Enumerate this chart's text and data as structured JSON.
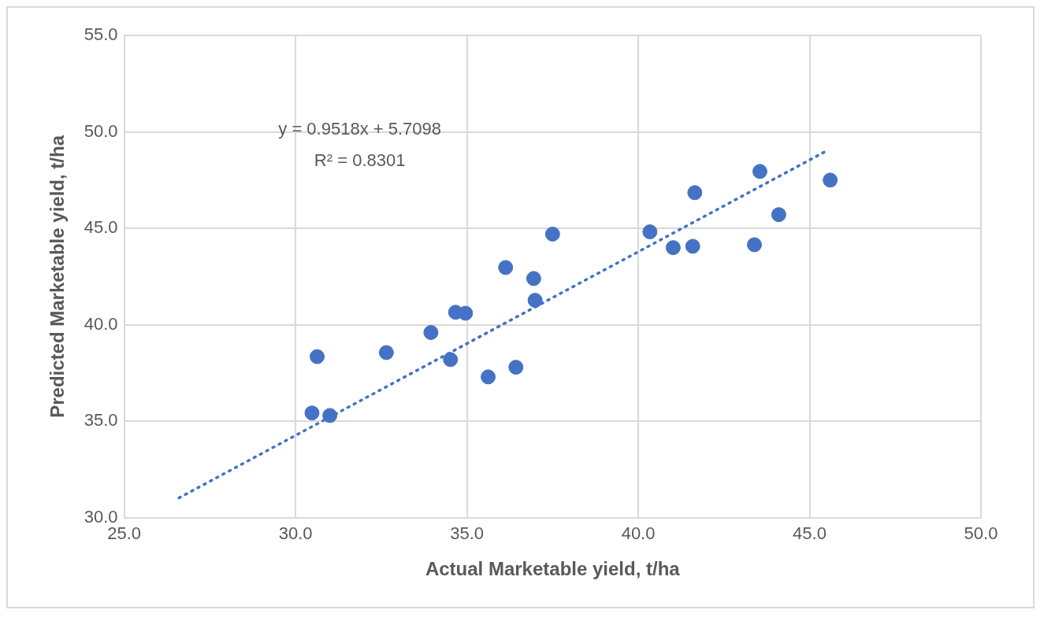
{
  "chart_data": {
    "type": "scatter",
    "xlabel": "Actual Marketable yield, t/ha",
    "ylabel": "Predicted Marketable yield, t/ha",
    "xlim": [
      25,
      50
    ],
    "ylim": [
      30,
      55
    ],
    "xticks": [
      {
        "value": 25,
        "label": "25.0"
      },
      {
        "value": 30,
        "label": "30.0"
      },
      {
        "value": 35,
        "label": "35.0"
      },
      {
        "value": 40,
        "label": "40.0"
      },
      {
        "value": 45,
        "label": "45.0"
      },
      {
        "value": 50,
        "label": "50.0"
      }
    ],
    "yticks": [
      {
        "value": 30,
        "label": "30.0"
      },
      {
        "value": 35,
        "label": "35.0"
      },
      {
        "value": 40,
        "label": "40.0"
      },
      {
        "value": 45,
        "label": "45.0"
      },
      {
        "value": 50,
        "label": "50.0"
      },
      {
        "value": 55,
        "label": "55.0"
      }
    ],
    "grid": true,
    "legend": false,
    "marker": "circle",
    "annotations": [
      "y = 0.9518x + 5.7098",
      "R² = 0.8301"
    ],
    "series": [
      {
        "type": "scatter",
        "color": "#4472c4",
        "x": [
          30.48,
          31.0,
          30.63,
          32.65,
          33.95,
          34.52,
          35.62,
          36.43,
          34.67,
          34.96,
          36.13,
          36.95,
          36.99,
          37.5,
          40.34,
          41.02,
          41.59,
          41.65,
          43.39,
          43.55,
          44.1,
          45.6
        ],
        "values": [
          35.43,
          35.3,
          38.35,
          38.56,
          39.6,
          38.2,
          37.3,
          37.8,
          40.65,
          40.6,
          42.97,
          42.4,
          41.27,
          44.7,
          44.82,
          44.0,
          44.07,
          46.85,
          44.15,
          47.95,
          45.71,
          47.5
        ]
      },
      {
        "type": "line",
        "color": "#4472c4",
        "line_style": "dotted",
        "marker": "none",
        "x": [
          26.6,
          45.5
        ],
        "values": [
          31.03,
          49.02
        ]
      }
    ]
  }
}
